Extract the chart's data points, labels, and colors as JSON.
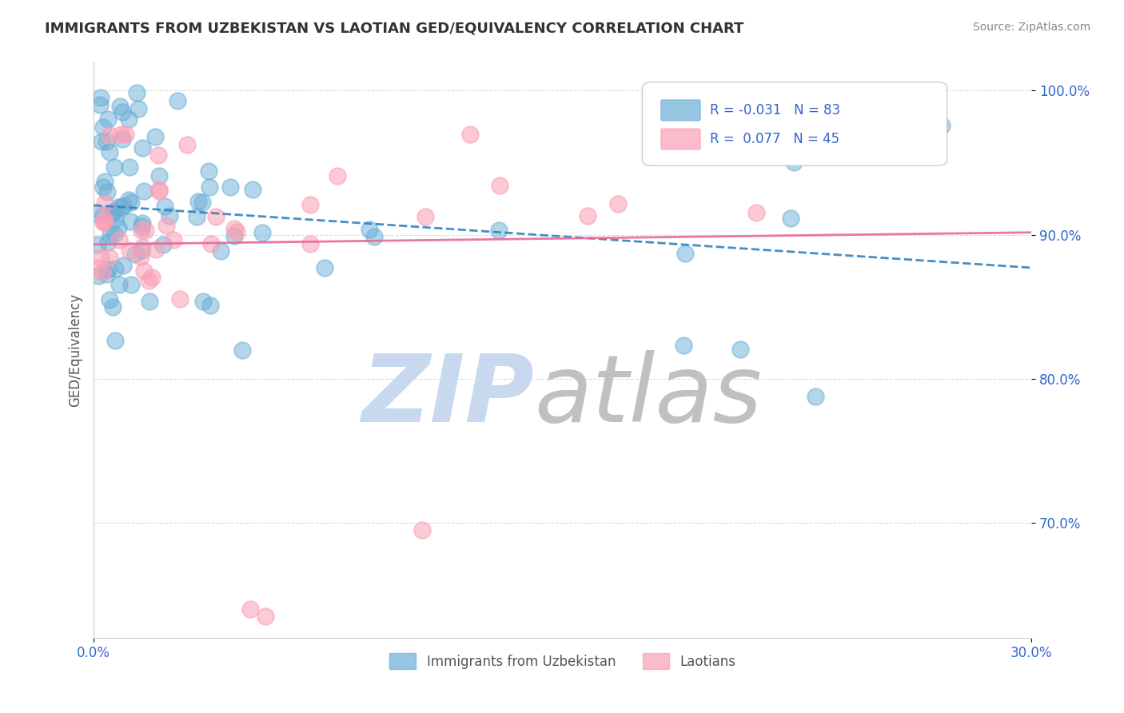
{
  "title": "IMMIGRANTS FROM UZBEKISTAN VS LAOTIAN GED/EQUIVALENCY CORRELATION CHART",
  "source_text": "Source: ZipAtlas.com",
  "ylabel": "GED/Equivalency",
  "xlim": [
    0.0,
    0.3
  ],
  "ylim": [
    0.62,
    1.02
  ],
  "yticks": [
    0.7,
    0.8,
    0.9,
    1.0
  ],
  "ytick_labels": [
    "70.0%",
    "80.0%",
    "90.0%",
    "100.0%"
  ],
  "xticks": [
    0.0,
    0.3
  ],
  "xtick_labels": [
    "0.0%",
    "30.0%"
  ],
  "r1": "-0.031",
  "n1": "83",
  "r2": "0.077",
  "n2": "45",
  "blue_color": "#6baed6",
  "pink_color": "#fa9fb5",
  "blue_line_color": "#3182bd",
  "pink_line_color": "#e8679a",
  "title_color": "#333333",
  "axis_label_color": "#555555",
  "tick_color": "#3366cc",
  "grid_color": "#cccccc",
  "watermark_zip_color": "#c8d8ee",
  "watermark_atlas_color": "#c0c0c0",
  "legend_label1": "Immigrants from Uzbekistan",
  "legend_label2": "Laotians"
}
